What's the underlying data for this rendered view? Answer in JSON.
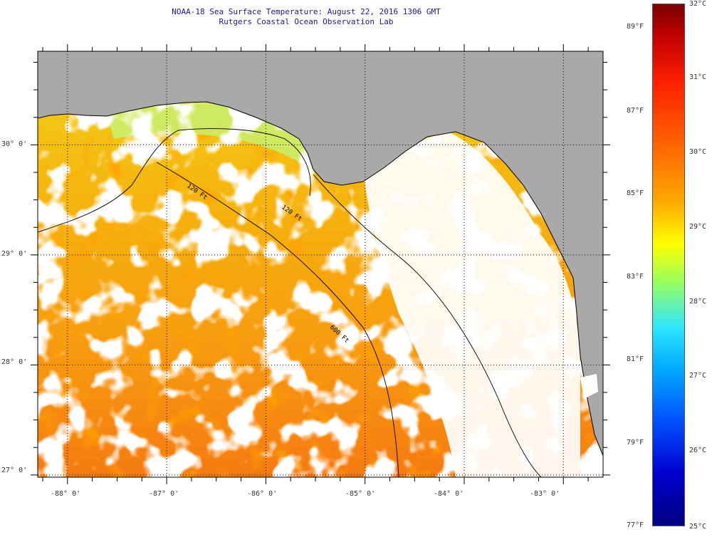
{
  "header": {
    "title": "NOAA-18 Sea Surface Temperature:  August 22, 2016 1306 GMT",
    "subtitle": "Rutgers Coastal Ocean Observation Lab"
  },
  "map": {
    "lon_range": [
      -88.3,
      -82.6
    ],
    "lat_range": [
      26.98,
      30.85
    ],
    "lon_ticks": [
      "-88° 0'",
      "-87° 0'",
      "-86° 0'",
      "-85° 0'",
      "-84° 0'",
      "-83° 0'"
    ],
    "lat_ticks": [
      "30° 0'",
      "29° 0'",
      "28° 0'",
      "27° 0'"
    ],
    "isobaths": [
      "120 Ft",
      "600 Ft",
      "120 Ft"
    ],
    "colors": {
      "land": "#a9a9a9",
      "cloud": "#ffffff",
      "coastline": "#000000",
      "title": "#1a1a8c"
    }
  },
  "colorbar": {
    "celsius_labels": [
      "32°C",
      "31°C",
      "30°C",
      "29°C",
      "28°C",
      "27°C",
      "26°C",
      "25°C"
    ],
    "fahrenheit_labels": [
      "89°F",
      "87°F",
      "85°F",
      "83°F",
      "81°F",
      "79°F",
      "77°F"
    ],
    "range_c": [
      25,
      32
    ]
  }
}
